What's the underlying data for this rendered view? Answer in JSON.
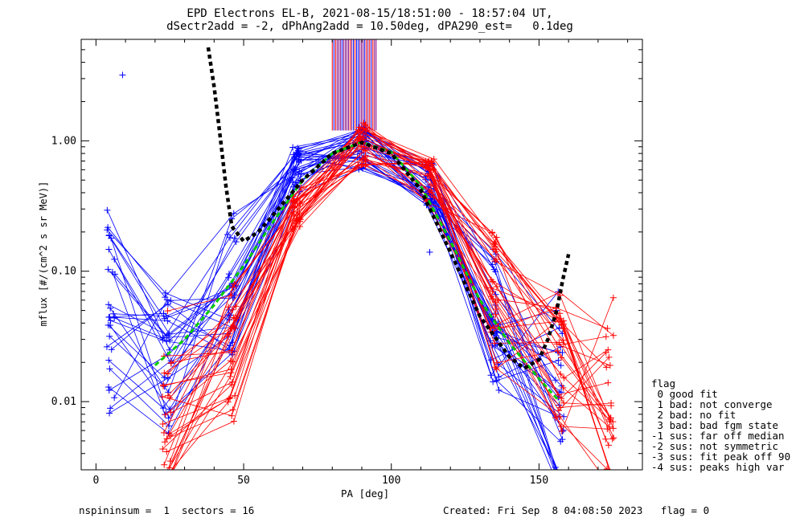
{
  "chart_data": {
    "type": "scatter",
    "title": "EPD Electrons EL-B, 2021-08-15/18:51:00 - 18:57:04 UT,",
    "subtitle": "dSectr2add = -2, dPhAng2add = 10.50deg, dPA290_est=   0.1deg",
    "xlabel": "PA [deg]",
    "ylabel": "mflux [#/(cm^2 s sr MeV)]",
    "xlim": [
      -5,
      185
    ],
    "ylim": [
      0.003,
      6
    ],
    "log_y": true,
    "x_ticks": [
      {
        "v": 0,
        "label": "0"
      },
      {
        "v": 50,
        "label": "50"
      },
      {
        "v": 100,
        "label": "100"
      },
      {
        "v": 150,
        "label": "150"
      }
    ],
    "y_ticks": [
      {
        "v": 0.01,
        "label": "0.01"
      },
      {
        "v": 0.1,
        "label": "0.10"
      },
      {
        "v": 1.0,
        "label": "1.00"
      }
    ],
    "series": [
      {
        "color": "#0000ff",
        "style": "sweeps",
        "x": [
          5,
          24,
          46,
          68,
          90,
          113,
          135,
          157
        ],
        "y": [
          0.05,
          0.02,
          0.08,
          0.6,
          0.9,
          0.45,
          0.04,
          0.012
        ]
      },
      {
        "color": "#ff0000",
        "style": "sweeps",
        "x": [
          24,
          46,
          68,
          90,
          113,
          135,
          157,
          174
        ],
        "y": [
          0.012,
          0.025,
          0.3,
          0.95,
          0.5,
          0.06,
          0.02,
          0.01
        ]
      },
      {
        "color": "#00cc00",
        "style": "dashed-fit",
        "x": [
          20,
          30,
          40,
          50,
          60,
          70,
          80,
          90,
          100,
          110,
          120,
          130,
          140,
          150,
          157
        ],
        "y": [
          0.019,
          0.03,
          0.055,
          0.11,
          0.24,
          0.5,
          0.8,
          0.98,
          0.82,
          0.45,
          0.17,
          0.06,
          0.028,
          0.015,
          0.01
        ]
      },
      {
        "color": "#000000",
        "style": "dashed-model",
        "x": [
          38,
          40,
          42,
          44,
          46,
          50,
          55,
          60,
          70,
          80,
          90,
          100,
          110,
          120,
          130,
          140,
          145,
          150,
          153,
          156,
          158,
          160
        ],
        "y": [
          5.2,
          2.6,
          1.1,
          0.45,
          0.22,
          0.17,
          0.2,
          0.27,
          0.5,
          0.8,
          0.97,
          0.8,
          0.42,
          0.14,
          0.045,
          0.022,
          0.018,
          0.021,
          0.03,
          0.05,
          0.085,
          0.135
        ]
      }
    ],
    "extra_points": [
      {
        "x": 9,
        "y": 3.2,
        "color": "#0000ff"
      },
      {
        "x": 135,
        "y": 0.155,
        "color": "#ff0000"
      },
      {
        "x": 113,
        "y": 0.14,
        "color": "#0000ff"
      }
    ],
    "spike_band": {
      "x": [
        80,
        95
      ],
      "y_bottom": 1.2,
      "colors": [
        "#0000ff",
        "#ff0000",
        "#800080"
      ]
    },
    "legend": {
      "placement": "right",
      "header": "flag",
      "entries": [
        " 0 good fit",
        " 1 bad: not converge",
        " 2 bad: no fit",
        " 3 bad: bad fgm state",
        "-1 sus: far off median",
        "-2 sus: not symmetric",
        "-3 sus: fit peak off 90",
        "-4 sus: peaks high var"
      ]
    },
    "footer": {
      "left": "nspininsum =  1  sectors = 16",
      "right": "Created: Fri Sep  8 04:08:50 2023   flag = 0"
    }
  }
}
